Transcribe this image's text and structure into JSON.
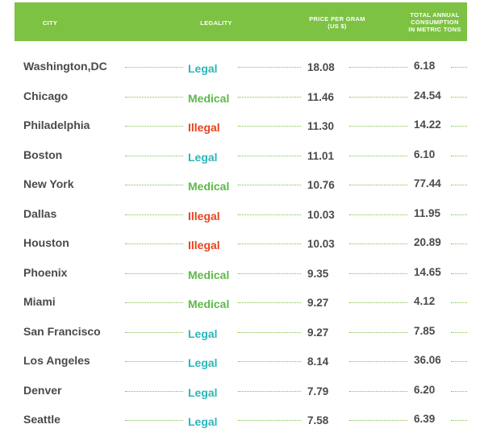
{
  "header": {
    "city": "CITY",
    "legality": "LEGALITY",
    "price_line1": "PRICE PER GRAM",
    "price_line2": "(US $)",
    "cons_line1": "TOTAL ANNUAL",
    "cons_line2": "CONSUMPTION",
    "cons_line3": "IN METRIC TONS"
  },
  "colors": {
    "header_green": "#7dc242",
    "legal": "#2bb6b8",
    "medical": "#5cb94a",
    "illegal": "#e8431d",
    "text": "#4a4a4a"
  },
  "chart_data": {
    "type": "table",
    "columns": [
      "CITY",
      "LEGALITY",
      "PRICE PER GRAM (US $)",
      "TOTAL ANNUAL CONSUMPTION IN METRIC TONS"
    ],
    "rows": [
      {
        "city": "Washington,DC",
        "legality": "Legal",
        "price": "18.08",
        "consumption": "6.18"
      },
      {
        "city": "Chicago",
        "legality": "Medical",
        "price": "11.46",
        "consumption": "24.54"
      },
      {
        "city": "Philadelphia",
        "legality": "Illegal",
        "price": "11.30",
        "consumption": "14.22"
      },
      {
        "city": "Boston",
        "legality": "Legal",
        "price": "11.01",
        "consumption": "6.10"
      },
      {
        "city": "New York",
        "legality": "Medical",
        "price": "10.76",
        "consumption": "77.44"
      },
      {
        "city": "Dallas",
        "legality": "Illegal",
        "price": "10.03",
        "consumption": "11.95"
      },
      {
        "city": "Houston",
        "legality": "Illegal",
        "price": "10.03",
        "consumption": "20.89"
      },
      {
        "city": "Phoenix",
        "legality": "Medical",
        "price": "9.35",
        "consumption": "14.65"
      },
      {
        "city": "Miami",
        "legality": "Medical",
        "price": "9.27",
        "consumption": "4.12"
      },
      {
        "city": "San Francisco",
        "legality": "Legal",
        "price": "9.27",
        "consumption": "7.85"
      },
      {
        "city": "Los Angeles",
        "legality": "Legal",
        "price": "8.14",
        "consumption": "36.06"
      },
      {
        "city": "Denver",
        "legality": "Legal",
        "price": "7.79",
        "consumption": "6.20"
      },
      {
        "city": "Seattle",
        "legality": "Legal",
        "price": "7.58",
        "consumption": "6.39"
      }
    ]
  }
}
